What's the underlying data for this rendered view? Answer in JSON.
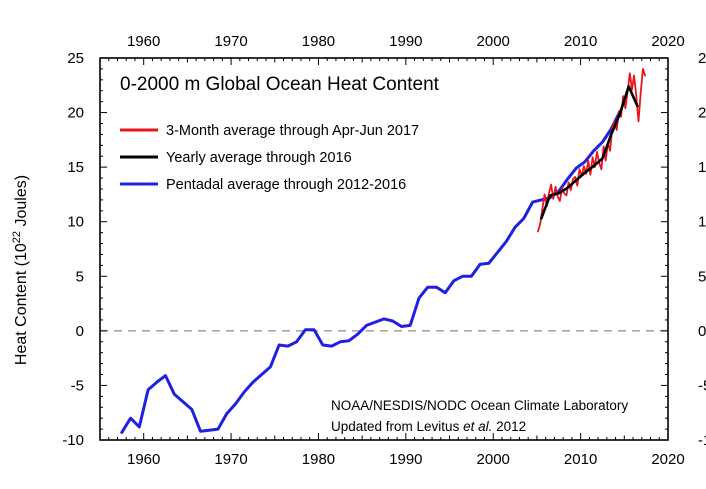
{
  "chart_data": {
    "type": "line",
    "title": "0-2000 m Global Ocean Heat Content",
    "ylabel": "Heat Content (10",
    "ylabel_exp": "22",
    "ylabel_suffix": " Joules)",
    "xlim": [
      1955,
      2020
    ],
    "ylim": [
      -10,
      25
    ],
    "x_ticks": [
      1960,
      1970,
      1980,
      1990,
      2000,
      2010,
      2020
    ],
    "y_ticks": [
      -10,
      -5,
      0,
      5,
      10,
      15,
      20,
      25
    ],
    "zero_line": {
      "value": 0,
      "style": "dashed",
      "color": "#999999"
    },
    "legend_position": "top-left",
    "credit_line1": "NOAA/NESDIS/NODC Ocean Climate Laboratory",
    "credit_line2_prefix": "Updated from Levitus ",
    "credit_line2_italic": "et al.",
    "credit_line2_suffix": " 2012",
    "series": [
      {
        "name": "3-Month average through Apr-Jun 2017",
        "color": "#e8141e",
        "x": [
          2005.125,
          2005.375,
          2005.625,
          2005.875,
          2006.125,
          2006.375,
          2006.625,
          2006.875,
          2007.125,
          2007.375,
          2007.625,
          2007.875,
          2008.125,
          2008.375,
          2008.625,
          2008.875,
          2009.125,
          2009.375,
          2009.625,
          2009.875,
          2010.125,
          2010.375,
          2010.625,
          2010.875,
          2011.125,
          2011.375,
          2011.625,
          2011.875,
          2012.125,
          2012.375,
          2012.625,
          2012.875,
          2013.125,
          2013.375,
          2013.625,
          2013.875,
          2014.125,
          2014.375,
          2014.625,
          2014.875,
          2015.125,
          2015.375,
          2015.625,
          2015.875,
          2016.125,
          2016.375,
          2016.625,
          2016.875,
          2017.125,
          2017.375
        ],
        "y": [
          9.1,
          9.8,
          11.2,
          12.5,
          11.4,
          12.6,
          13.4,
          12.1,
          13.2,
          12.3,
          11.9,
          13.1,
          12.6,
          12.4,
          13.6,
          12.9,
          13.9,
          14.1,
          13.3,
          14.8,
          14.2,
          15.1,
          14.4,
          15.6,
          14.3,
          15.9,
          15.0,
          16.4,
          15.4,
          14.8,
          16.9,
          15.6,
          17.2,
          16.5,
          18.6,
          19.2,
          18.4,
          20.1,
          19.6,
          21.5,
          20.4,
          21.9,
          23.6,
          22.1,
          23.4,
          21.5,
          19.2,
          21.8,
          24.0,
          23.4
        ]
      },
      {
        "name": "Yearly average through 2016",
        "color": "#000000",
        "x": [
          2005.5,
          2006.5,
          2007.5,
          2008.5,
          2009.5,
          2010.5,
          2011.5,
          2012.5,
          2013.5,
          2014.5,
          2015.5,
          2016.5
        ],
        "y": [
          10.3,
          12.4,
          12.6,
          13.1,
          13.8,
          14.5,
          15.1,
          15.8,
          18.0,
          19.9,
          22.4,
          20.6
        ]
      },
      {
        "name": "Pentadal average through 2012-2016",
        "color": "#2020e0",
        "x": [
          1957.5,
          1958.5,
          1959.5,
          1960.5,
          1961.5,
          1962.5,
          1963.5,
          1964.5,
          1965.5,
          1966.5,
          1967.5,
          1968.5,
          1969.5,
          1970.5,
          1971.5,
          1972.5,
          1973.5,
          1974.5,
          1975.5,
          1976.5,
          1977.5,
          1978.5,
          1979.5,
          1980.5,
          1981.5,
          1982.5,
          1983.5,
          1984.5,
          1985.5,
          1986.5,
          1987.5,
          1988.5,
          1989.5,
          1990.5,
          1991.5,
          1992.5,
          1993.5,
          1994.5,
          1995.5,
          1996.5,
          1997.5,
          1998.5,
          1999.5,
          2000.5,
          2001.5,
          2002.5,
          2003.5,
          2004.5,
          2005.5,
          2006.5,
          2007.5,
          2008.5,
          2009.5,
          2010.5,
          2011.5,
          2012.5,
          2013.5,
          2014.5
        ],
        "y": [
          -9.3,
          -8.0,
          -8.8,
          -5.4,
          -4.7,
          -4.1,
          -5.8,
          -6.5,
          -7.2,
          -9.2,
          -9.1,
          -9.0,
          -7.6,
          -6.7,
          -5.6,
          -4.7,
          -4.0,
          -3.3,
          -1.3,
          -1.4,
          -1.0,
          0.1,
          0.1,
          -1.3,
          -1.4,
          -1.0,
          -0.9,
          -0.3,
          0.5,
          0.8,
          1.1,
          0.9,
          0.4,
          0.5,
          3.0,
          4.0,
          4.0,
          3.5,
          4.6,
          5.0,
          5.0,
          6.1,
          6.2,
          7.2,
          8.2,
          9.5,
          10.3,
          11.8,
          12.0,
          12.2,
          12.8,
          13.9,
          14.9,
          15.5,
          16.5,
          17.3,
          18.5,
          20.1
        ]
      }
    ]
  }
}
